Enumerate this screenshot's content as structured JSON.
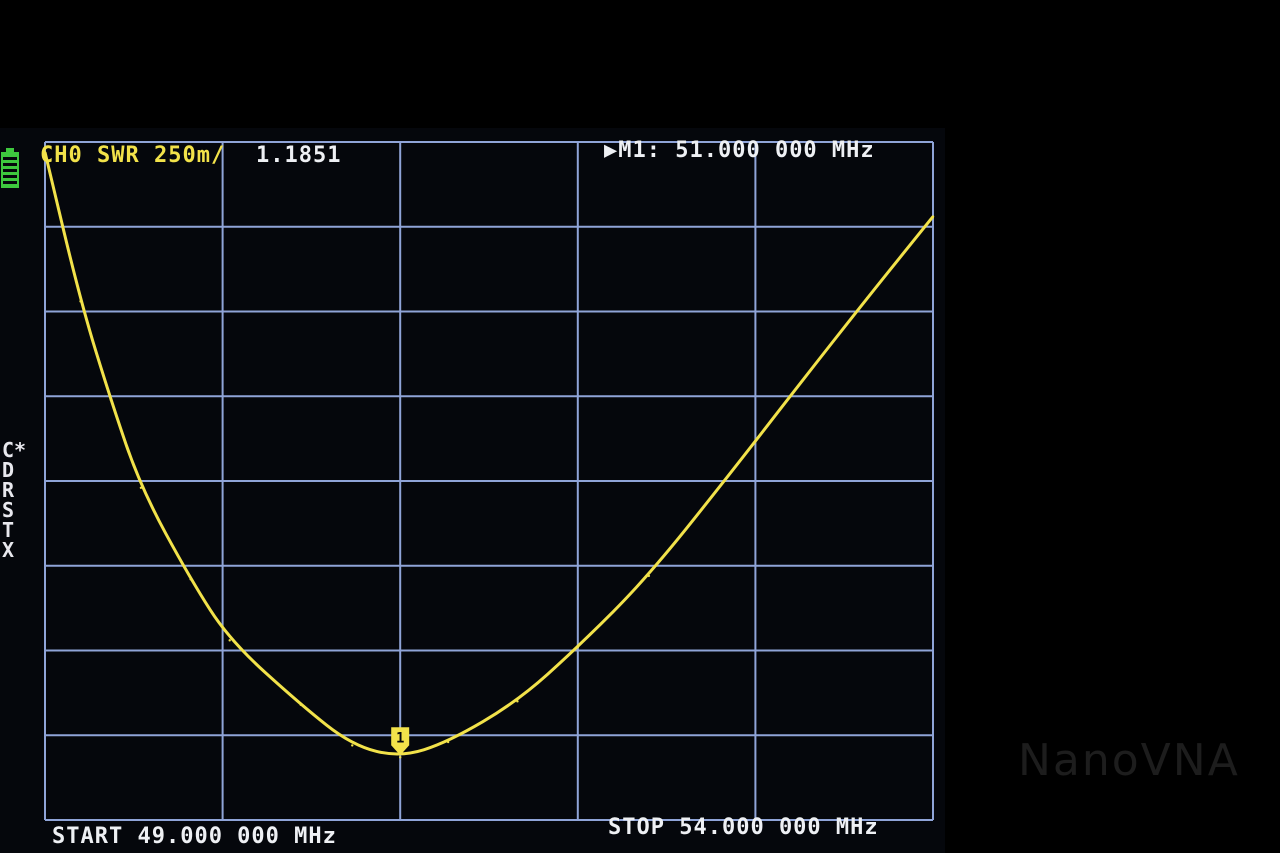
{
  "chart_data": {
    "type": "line",
    "title": "",
    "trace_label": "CH0 SWR 250m/",
    "trace_value": "1.1851",
    "marker_label": "M1: 51.000 000 MHz",
    "marker_number": "1",
    "start_label": "START 49.000 000 MHz",
    "stop_label": "STOP 54.000 000 MHz",
    "xlim": [
      49.0,
      54.0
    ],
    "ylim": [
      1.0,
      3.0
    ],
    "x_divisions": 5,
    "y_divisions": 8,
    "grid": true,
    "series": [
      {
        "color": "#f2e24a",
        "x": [
          49.0,
          49.2,
          49.37,
          49.54,
          49.82,
          50.04,
          50.44,
          50.73,
          51.0,
          51.27,
          51.66,
          52.0,
          52.4,
          52.9,
          53.24,
          53.63,
          54.0
        ],
        "y": [
          2.97,
          2.53,
          2.24,
          1.98,
          1.71,
          1.53,
          1.34,
          1.22,
          1.185,
          1.23,
          1.35,
          1.51,
          1.72,
          2.05,
          2.28,
          2.54,
          2.78
        ]
      }
    ],
    "marker_x": 51.0
  },
  "side_labels": [
    "C*",
    "D",
    "R",
    "S",
    "T",
    "X"
  ],
  "watermark": "NanoVNA",
  "colors": {
    "grid": "#8fa4d8",
    "trace": "#f2e24a",
    "text": "#eef0f4",
    "battery": "#3ec83e"
  }
}
